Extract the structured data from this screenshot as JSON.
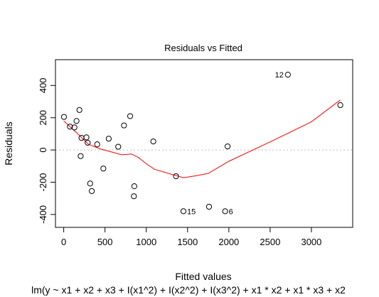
{
  "chart_data": {
    "type": "scatter",
    "title": "Residuals vs Fitted",
    "xlabel": "Fitted values",
    "ylabel": "Residuals",
    "subtitle": "lm(y ~ x1 + x2 + x3 + I(x1^2) + I(x2^2) + I(x3^2) + x1 * x2 + x1 * x3 + x2",
    "xlim": [
      -100,
      3500
    ],
    "ylim": [
      -480,
      560
    ],
    "x_ticks": [
      0,
      500,
      1000,
      1500,
      2000,
      2500,
      3000
    ],
    "y_ticks": [
      -400,
      -200,
      0,
      200,
      400
    ],
    "points": [
      {
        "x": 3,
        "y": 205
      },
      {
        "x": 75,
        "y": 145
      },
      {
        "x": 130,
        "y": 140
      },
      {
        "x": 155,
        "y": 180
      },
      {
        "x": 190,
        "y": 248
      },
      {
        "x": 215,
        "y": 75
      },
      {
        "x": 205,
        "y": -38
      },
      {
        "x": 275,
        "y": 78
      },
      {
        "x": 290,
        "y": 45
      },
      {
        "x": 320,
        "y": -208
      },
      {
        "x": 340,
        "y": -255
      },
      {
        "x": 405,
        "y": 35
      },
      {
        "x": 480,
        "y": -115
      },
      {
        "x": 545,
        "y": 70
      },
      {
        "x": 660,
        "y": 20
      },
      {
        "x": 730,
        "y": 152
      },
      {
        "x": 805,
        "y": 210
      },
      {
        "x": 855,
        "y": -225
      },
      {
        "x": 850,
        "y": -287
      },
      {
        "x": 1085,
        "y": 53
      },
      {
        "x": 1360,
        "y": -163
      },
      {
        "x": 1450,
        "y": -380,
        "label": "15"
      },
      {
        "x": 1760,
        "y": -352
      },
      {
        "x": 1955,
        "y": -380,
        "label": "6"
      },
      {
        "x": 1985,
        "y": 22
      },
      {
        "x": 2715,
        "y": 467,
        "label": "12"
      },
      {
        "x": 3350,
        "y": 278
      }
    ],
    "smooth_line": {
      "x": [
        0,
        150,
        300,
        450,
        600,
        700,
        820,
        900,
        1000,
        1100,
        1300,
        1450,
        1600,
        1750,
        2000,
        2500,
        3000,
        3350
      ],
      "y": [
        180,
        110,
        35,
        5,
        -15,
        -30,
        -25,
        -45,
        -85,
        -120,
        -150,
        -172,
        -160,
        -145,
        -70,
        50,
        175,
        310
      ]
    },
    "reference_line_y": 0,
    "colors": {
      "points": "#000000",
      "smooth": "#ff0000",
      "reference": "#bebebe"
    }
  }
}
